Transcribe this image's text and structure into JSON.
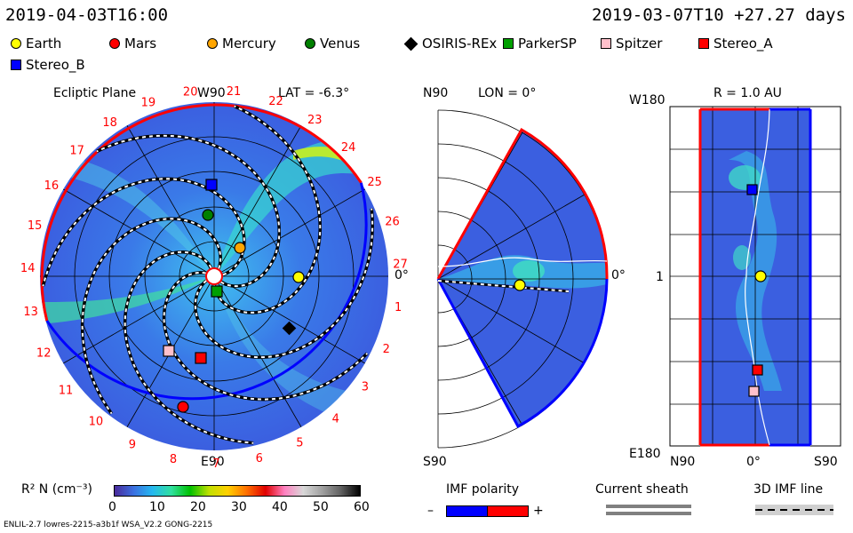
{
  "header": {
    "time_left": "2019-04-03T16:00",
    "time_right": "2019-03-07T10 +27.27 days"
  },
  "legend": [
    {
      "name": "Earth",
      "color": "#ffff00",
      "shape": "circle"
    },
    {
      "name": "Mars",
      "color": "#ff0000",
      "shape": "circle"
    },
    {
      "name": "Mercury",
      "color": "#ffa500",
      "shape": "circle"
    },
    {
      "name": "Venus",
      "color": "#008000",
      "shape": "circle"
    },
    {
      "name": "OSIRIS-REx",
      "color": "#000000",
      "shape": "diamond"
    },
    {
      "name": "ParkerSP",
      "color": "#00a000",
      "shape": "square"
    },
    {
      "name": "Spitzer",
      "color": "#ffc0cb",
      "shape": "square"
    },
    {
      "name": "Stereo_A",
      "color": "#ff0000",
      "shape": "square"
    },
    {
      "name": "Stereo_B",
      "color": "#0000ff",
      "shape": "square"
    }
  ],
  "ecliptic": {
    "title": "Ecliptic Plane",
    "top_label": "W90",
    "lat_label": "LAT = -6.3°",
    "bottom_label": "E90",
    "right_label": "0°",
    "sectors": [
      "1",
      "2",
      "3",
      "4",
      "5",
      "6",
      "7",
      "8",
      "9",
      "10",
      "11",
      "12",
      "13",
      "14",
      "15",
      "16",
      "17",
      "18",
      "19",
      "20",
      "21",
      "22",
      "23",
      "24",
      "25",
      "26",
      "27"
    ]
  },
  "meridional": {
    "title": "LON = 0°",
    "top_label": "N90",
    "bottom_label": "S90",
    "right_label": "0°"
  },
  "radial": {
    "title": "R = 1.0 AU",
    "top_left_label": "W180",
    "mid_label": "1",
    "bottom_left_label": "E180",
    "x_labels": [
      "N90",
      "0°",
      "S90"
    ]
  },
  "colorbar": {
    "title": "R² N (cm⁻³)",
    "ticks": [
      "0",
      "10",
      "20",
      "30",
      "40",
      "50",
      "60"
    ],
    "colors": [
      "#4a2a9a",
      "#3b6fe0",
      "#25b8f0",
      "#30e0a0",
      "#00c000",
      "#c0e000",
      "#ffd000",
      "#ff7000",
      "#e00000",
      "#ff80c0",
      "#d8d8d8",
      "#a0a0a0",
      "#606060",
      "#000000"
    ]
  },
  "imf": {
    "title": "IMF polarity",
    "minus": "–",
    "plus": "+",
    "neg_color": "#0000ff",
    "pos_color": "#ff0000"
  },
  "sheath": {
    "title": "Current sheath"
  },
  "imfline": {
    "title": "3D IMF line"
  },
  "footer": {
    "text": "ENLIL-2.7 lowres-2215-a3b1f WSA_V2.2 GONG-2215"
  }
}
